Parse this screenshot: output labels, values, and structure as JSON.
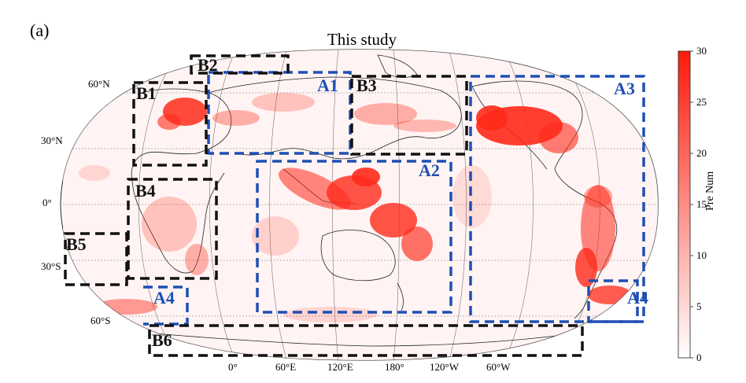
{
  "panel_label": "(a)",
  "title": "This study",
  "lat_labels": [
    "60°N",
    "30°N",
    "0°",
    "30°S",
    "60°S"
  ],
  "lon_labels": [
    "0°",
    "60°E",
    "120°E",
    "180°",
    "120°W",
    "60°W"
  ],
  "regions": {
    "blue": [
      "A1",
      "A2",
      "A3",
      "A4",
      "A4"
    ],
    "black": [
      "B1",
      "B2",
      "B3",
      "B4",
      "B5",
      "B6"
    ]
  },
  "colorbar": {
    "title": "Pre Num",
    "ticks": [
      "0",
      "5",
      "10",
      "15",
      "20",
      "25",
      "30"
    ],
    "min": 0,
    "max": 30,
    "colors": {
      "low": "#ffffff",
      "high": "#ff1a0a"
    }
  },
  "colors": {
    "blue_box": "#1f4fb3",
    "black_box": "#111111",
    "density": "#ff2a1a"
  }
}
